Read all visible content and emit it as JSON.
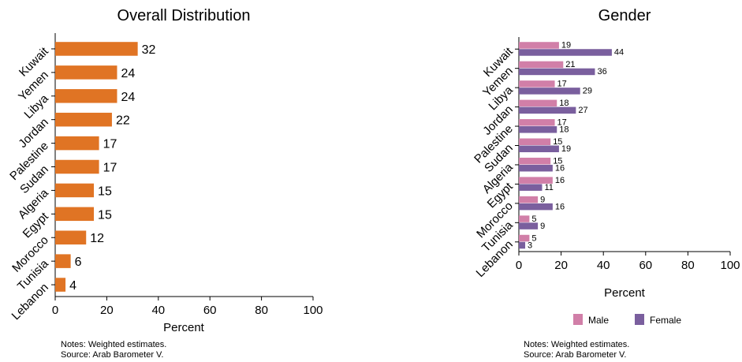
{
  "colors": {
    "overall": "#E07424",
    "male": "#D17FA8",
    "female": "#7A5F9E",
    "axis": "#000000"
  },
  "chart_data": [
    {
      "type": "bar",
      "orientation": "horizontal",
      "title": "Overall Distribution",
      "xlabel": "Percent",
      "categories": [
        "Kuwait",
        "Yemen",
        "Libya",
        "Jordan",
        "Palestine",
        "Sudan",
        "Algeria",
        "Egypt",
        "Morocco",
        "Tunisia",
        "Lebanon"
      ],
      "values": [
        32,
        24,
        24,
        22,
        17,
        17,
        15,
        15,
        12,
        6,
        4
      ],
      "xlim": [
        0,
        100
      ],
      "xticks": [
        0,
        20,
        40,
        60,
        80,
        100
      ],
      "grid": false,
      "notes": [
        "Notes: Weighted estimates.",
        "Source: Arab Barometer V."
      ]
    },
    {
      "type": "bar",
      "orientation": "horizontal",
      "title": "Gender",
      "xlabel": "Percent",
      "categories": [
        "Kuwait",
        "Yemen",
        "Libya",
        "Jordan",
        "Palestine",
        "Sudan",
        "Algeria",
        "Egypt",
        "Morocco",
        "Tunisia",
        "Lebanon"
      ],
      "series": [
        {
          "name": "Male",
          "values": [
            19,
            21,
            17,
            18,
            17,
            15,
            15,
            16,
            9,
            5,
            5
          ]
        },
        {
          "name": "Female",
          "values": [
            44,
            36,
            29,
            27,
            18,
            19,
            16,
            11,
            16,
            9,
            3
          ]
        }
      ],
      "xlim": [
        0,
        100
      ],
      "xticks": [
        0,
        20,
        40,
        60,
        80,
        100
      ],
      "legend_position": "bottom",
      "grid": false,
      "notes": [
        "Notes: Weighted estimates.",
        "Source: Arab Barometer V."
      ]
    }
  ]
}
